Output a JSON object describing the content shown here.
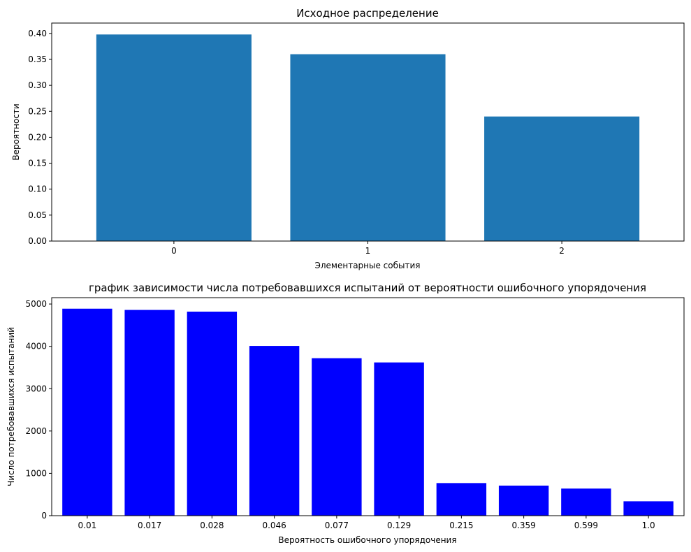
{
  "chart_data": [
    {
      "type": "bar",
      "title": "Исходное распределение",
      "xlabel": "Элементарные события",
      "ylabel": "Вероятности",
      "categories": [
        "0",
        "1",
        "2"
      ],
      "values": [
        0.398,
        0.36,
        0.24
      ],
      "ylim": [
        0,
        0.42
      ],
      "yticks": [
        "0.00",
        "0.05",
        "0.10",
        "0.15",
        "0.20",
        "0.25",
        "0.30",
        "0.35",
        "0.40"
      ],
      "color": "#1f77b4",
      "grid": false
    },
    {
      "type": "bar",
      "title": "график зависимости числа потребовавшихся испытаний от вероятности ошибочного упорядочения",
      "xlabel": "Вероятность ошибочного упорядочения",
      "ylabel": "Число потребовавшихся испытаний",
      "categories": [
        "0.01",
        "0.017",
        "0.028",
        "0.046",
        "0.077",
        "0.129",
        "0.215",
        "0.359",
        "0.599",
        "1.0"
      ],
      "values": [
        4890,
        4860,
        4820,
        4010,
        3720,
        3620,
        770,
        710,
        640,
        340
      ],
      "ylim": [
        0,
        5150
      ],
      "yticks": [
        "0",
        "1000",
        "2000",
        "3000",
        "4000",
        "5000"
      ],
      "color": "#0000ff",
      "grid": false
    }
  ]
}
